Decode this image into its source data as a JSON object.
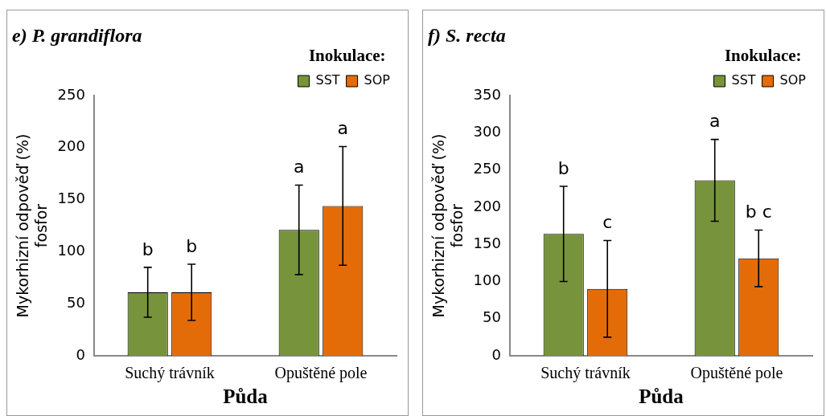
{
  "chart_data": [
    {
      "type": "bar",
      "title": "e) P. grandiflora",
      "xlabel": "Půda",
      "ylabel": "Mykorhizní odpověď (%) fosfor",
      "legend_title": "Inokulace:",
      "legend": "top right",
      "grid": false,
      "categories": [
        "Suchý trávník",
        "Opuštěné pole"
      ],
      "series": [
        {
          "name": "SST",
          "color": "#77933c",
          "values": [
            61,
            121
          ],
          "errors": [
            24,
            43
          ]
        },
        {
          "name": "SOP",
          "color": "#e36c09",
          "values": [
            61,
            144
          ],
          "errors": [
            27,
            57
          ]
        }
      ],
      "ylim": [
        0,
        250
      ],
      "yticks": [
        0,
        50,
        100,
        150,
        200,
        250
      ],
      "annotations": [
        "b",
        "b",
        "a",
        "a"
      ]
    },
    {
      "type": "bar",
      "title": "f) S. recta",
      "xlabel": "Půda",
      "ylabel": "Mykorhizní odpověď (%) fosfor",
      "legend_title": "Inokulace:",
      "legend": "top right",
      "grid": false,
      "categories": [
        "Suchý trávník",
        "Opuštěné pole"
      ],
      "series": [
        {
          "name": "SST",
          "color": "#77933c",
          "values": [
            164,
            236
          ],
          "errors": [
            64,
            55
          ]
        },
        {
          "name": "SOP",
          "color": "#e36c09",
          "values": [
            90,
            131
          ],
          "errors": [
            65,
            38
          ]
        }
      ],
      "ylim": [
        0,
        350
      ],
      "yticks": [
        0,
        50,
        100,
        150,
        200,
        250,
        300,
        350
      ],
      "annotations": [
        "b",
        "c",
        "a",
        "b c"
      ]
    }
  ]
}
